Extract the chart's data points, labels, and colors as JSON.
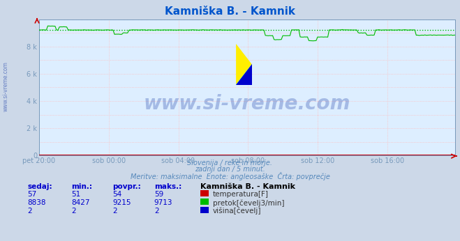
{
  "title": "Kamniška B. - Kamnik",
  "title_color": "#0055cc",
  "bg_color": "#ccd8e8",
  "plot_bg_color": "#ddeeff",
  "grid_color": "#ffbbbb",
  "axis_color": "#7799bb",
  "xticklabels": [
    "pet 20:00",
    "sob 00:00",
    "sob 04:00",
    "sob 08:00",
    "sob 12:00",
    "sob 16:00"
  ],
  "xtick_positions": [
    0,
    48,
    96,
    144,
    192,
    240
  ],
  "ylim": [
    0,
    10000
  ],
  "yticks": [
    0,
    2000,
    4000,
    6000,
    8000
  ],
  "yticklabels": [
    "0",
    "2 k",
    "4 k",
    "6 k",
    "8 k"
  ],
  "watermark_text": "www.si-vreme.com",
  "watermark_color": "#2244aa",
  "watermark_alpha": 0.3,
  "sub_text1": "Slovenija / reke in morje.",
  "sub_text2": "zadnji dan / 5 minut.",
  "sub_text3": "Meritve: maksimalne  Enote: angleosaške  Črta: povprečje",
  "sub_text_color": "#5588bb",
  "avg_pretok": 9215,
  "temp_color": "#cc0000",
  "pretok_color": "#00bb00",
  "visina_color": "#0000cc",
  "table_headers": [
    "sedaj:",
    "min.:",
    "povpr.:",
    "maks.:"
  ],
  "station_label": "Kamniška B. - Kamnik",
  "table_data": [
    {
      "vals": [
        57,
        51,
        54,
        59
      ],
      "label": "temperatura[F]",
      "color": "#cc0000"
    },
    {
      "vals": [
        8838,
        8427,
        9215,
        9713
      ],
      "label": "pretok[čevelj3/min]",
      "color": "#00bb00"
    },
    {
      "vals": [
        2,
        2,
        2,
        2
      ],
      "label": "višina[čevelj]",
      "color": "#0000cc"
    }
  ],
  "n_points": 288
}
